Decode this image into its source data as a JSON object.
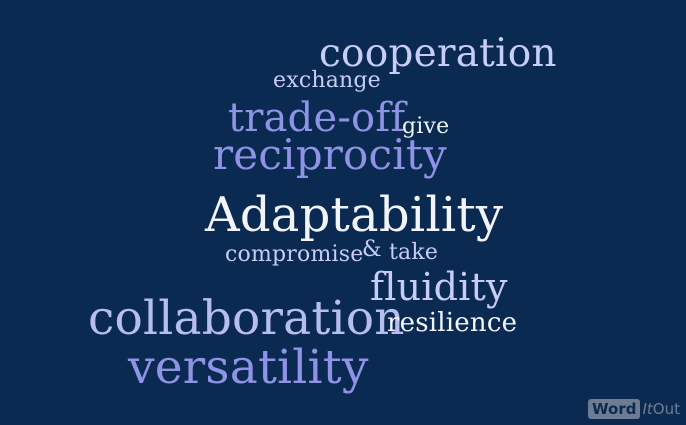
{
  "background_color": "#0b2a52",
  "words": {
    "cooperation": "cooperation",
    "exchange": "exchange",
    "tradeoff": "trade-off",
    "give": "give",
    "reciprocity": "reciprocity",
    "adaptability": "Adaptability",
    "compromise": "compromise",
    "amp": "&",
    "take": "take",
    "fluidity": "fluidity",
    "collaboration": "collaboration",
    "resilience": "resilience",
    "versatility": "versatility"
  },
  "palette": {
    "lavender": "#c7cdf4",
    "periwinkle": "#8f93e6",
    "white": "#f2f4ff"
  },
  "branding": {
    "word": "Word",
    "it": "It",
    "out": "Out"
  }
}
